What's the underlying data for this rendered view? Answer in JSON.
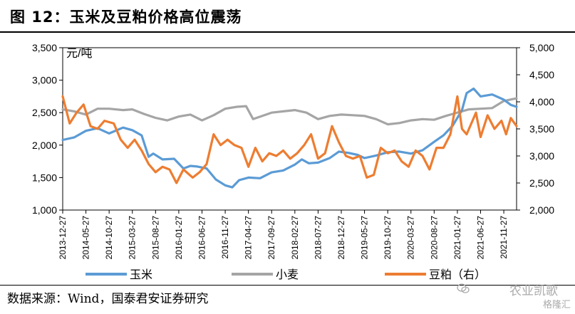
{
  "title": "图 12：玉米及豆粕价格高位震荡",
  "source": "数据来源：Wind，国泰君安证券研究",
  "watermark": "农业凯歌",
  "brand": "格隆汇",
  "colors": {
    "corn": "#5b9bd5",
    "wheat": "#a5a5a5",
    "soymeal": "#ed7d31"
  },
  "chart_data": {
    "type": "line",
    "unit_label": "元/吨",
    "grid": false,
    "legend_position": "bottom",
    "x_ticks": [
      "2013-12-27",
      "2014-05-27",
      "2014-10-27",
      "2015-03-27",
      "2015-08-27",
      "2016-01-27",
      "2016-06-27",
      "2016-11-27",
      "2017-04-27",
      "2017-09-27",
      "2018-02-27",
      "2018-07-27",
      "2018-12-27",
      "2019-05-27",
      "2019-10-27",
      "2020-03-27",
      "2020-08-27",
      "2021-01-27",
      "2021-06-27",
      "2021-11-27"
    ],
    "y_left": {
      "ticks": [
        "1,000",
        "1,500",
        "2,000",
        "2,500",
        "3,000",
        "3,500"
      ],
      "range": [
        1000,
        3500
      ]
    },
    "y_right": {
      "ticks": [
        "2,000",
        "2,500",
        "3,000",
        "3,500",
        "4,000",
        "4,500",
        "5,000"
      ],
      "range": [
        2000,
        5000
      ]
    },
    "x_range": [
      0,
      19.55
    ],
    "series": [
      {
        "name": "玉米",
        "axis": "left",
        "color": "#5b9bd5",
        "x": [
          0,
          0.5,
          1,
          1.5,
          2,
          2.6,
          3,
          3.4,
          3.7,
          3.9,
          4.3,
          4.8,
          5.2,
          5.5,
          5.8,
          6.2,
          6.6,
          7,
          7.3,
          7.6,
          8,
          8.5,
          9,
          9.5,
          10,
          10.3,
          10.6,
          11,
          11.5,
          11.9,
          12.3,
          12.7,
          13,
          13.5,
          14,
          14.5,
          15,
          15.5,
          16,
          16.4,
          16.8,
          17.2,
          17.4,
          17.7,
          18,
          18.5,
          19,
          19.3,
          19.55
        ],
        "y": [
          2080,
          2120,
          2220,
          2260,
          2180,
          2270,
          2230,
          2150,
          1820,
          1870,
          1780,
          1790,
          1640,
          1680,
          1670,
          1640,
          1470,
          1380,
          1350,
          1460,
          1500,
          1490,
          1580,
          1610,
          1700,
          1780,
          1720,
          1730,
          1800,
          1900,
          1880,
          1850,
          1800,
          1840,
          1890,
          1900,
          1870,
          1920,
          2050,
          2150,
          2300,
          2540,
          2800,
          2870,
          2750,
          2780,
          2700,
          2620,
          2590
        ]
      },
      {
        "name": "小麦",
        "axis": "left",
        "color": "#a5a5a5",
        "x": [
          0,
          0.5,
          1,
          1.5,
          2,
          2.6,
          3,
          3.5,
          4,
          4.5,
          5,
          5.5,
          6,
          6.5,
          7,
          7.5,
          7.9,
          8.2,
          8.6,
          9,
          9.5,
          10,
          10.5,
          11,
          11.5,
          12,
          12.5,
          13,
          13.5,
          14,
          14.5,
          15,
          15.5,
          16,
          16.5,
          17,
          17.5,
          18,
          18.5,
          19,
          19.55
        ],
        "y": [
          2550,
          2520,
          2470,
          2560,
          2560,
          2540,
          2550,
          2480,
          2420,
          2380,
          2440,
          2470,
          2380,
          2460,
          2560,
          2590,
          2600,
          2400,
          2450,
          2500,
          2520,
          2540,
          2500,
          2400,
          2450,
          2470,
          2460,
          2450,
          2400,
          2320,
          2340,
          2380,
          2400,
          2390,
          2450,
          2500,
          2550,
          2560,
          2570,
          2680,
          2720
        ]
      },
      {
        "name": "豆粕（右）",
        "axis": "right",
        "color": "#ed7d31",
        "x": [
          0,
          0.3,
          0.6,
          0.9,
          1.2,
          1.5,
          1.8,
          2.2,
          2.5,
          2.8,
          3.1,
          3.4,
          3.7,
          4,
          4.3,
          4.6,
          4.9,
          5.2,
          5.6,
          5.9,
          6.2,
          6.5,
          6.8,
          7.1,
          7.4,
          7.7,
          8,
          8.3,
          8.6,
          8.9,
          9.2,
          9.5,
          9.8,
          10.1,
          10.4,
          10.7,
          11,
          11.3,
          11.6,
          11.9,
          12.2,
          12.5,
          12.8,
          13.1,
          13.4,
          13.7,
          14,
          14.3,
          14.6,
          14.9,
          15.2,
          15.5,
          15.8,
          16.1,
          16.4,
          16.7,
          17,
          17.2,
          17.4,
          17.6,
          17.8,
          18,
          18.3,
          18.6,
          18.9,
          19.1,
          19.3,
          19.55
        ],
        "y": [
          4100,
          3600,
          3800,
          3950,
          3550,
          3500,
          3650,
          3600,
          3300,
          3150,
          3300,
          3100,
          2850,
          2700,
          2800,
          2750,
          2500,
          2750,
          2600,
          2700,
          2850,
          3400,
          3200,
          3300,
          3200,
          3150,
          2800,
          3150,
          2900,
          3050,
          3000,
          3100,
          2950,
          3050,
          3200,
          3400,
          2950,
          3050,
          3550,
          3250,
          3000,
          2950,
          3000,
          2600,
          2650,
          3150,
          3050,
          3100,
          2900,
          2800,
          3100,
          3000,
          2750,
          3150,
          3150,
          3400,
          4100,
          3500,
          3400,
          3600,
          3800,
          3350,
          3750,
          3500,
          3650,
          3400,
          3700,
          3550
        ]
      }
    ]
  }
}
